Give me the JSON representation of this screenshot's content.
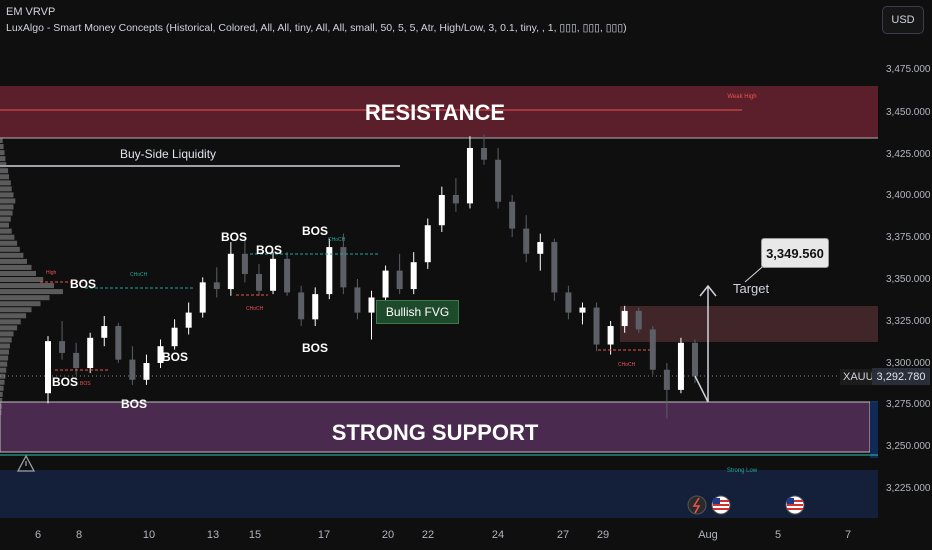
{
  "header": {
    "indicator1": "EM VRVP",
    "indicator2": "LuxAlgo - Smart Money Concepts (Historical, Colored, All, All, tiny, All, All, small, 50, 5, 5, Atr, High/Low, 3, 0.1, tiny, , 1, ▯▯▯, ▯▯▯, ▯▯▯)"
  },
  "currency_button": "USD",
  "symbol": "XAUUSD",
  "current_price": "3,292.780",
  "price_axis": [
    "3,475.000",
    "3,450.000",
    "3,425.000",
    "3,400.000",
    "3,375.000",
    "3,350.000",
    "3,325.000",
    "3,300.000",
    "3,275.000",
    "3,250.000",
    "3,225.000"
  ],
  "date_axis": [
    "6",
    "8",
    "10",
    "13",
    "15",
    "17",
    "20",
    "22",
    "24",
    "27",
    "29",
    "Aug",
    "5",
    "7"
  ],
  "zones": {
    "resistance": "RESISTANCE",
    "support": "STRONG SUPPORT",
    "weak_high": "Weak High",
    "strong_low": "Strong Low",
    "buy_side_liquidity": "Buy-Side Liquidity",
    "bullish_fvg": "Bullish FVG"
  },
  "target": {
    "label": "Target",
    "price": "3,349.560"
  },
  "structure_labels": [
    "BOS",
    "BOS",
    "BOS",
    "BOS",
    "BOS",
    "BOS",
    "BOS",
    "BOS",
    "BOS"
  ],
  "choch_label": "CHoCH",
  "small_bos": "BOS",
  "high_label": "High",
  "colors": {
    "background": "#0f0f0f",
    "resistance_zone": "#5a1f2a",
    "support_zone": "#4a2a4e",
    "bull_candle": "#ffffff",
    "bear_candle": "#5c5f66",
    "choch_teal": "#26a69a",
    "bos_red": "#ef5350",
    "lower_band": "#14203a"
  },
  "icons": [
    "flash-event-icon",
    "us-flag-icon",
    "us-flag-icon"
  ],
  "chart_data": {
    "type": "candlestick",
    "symbol": "XAUUSD",
    "ylim": [
      3215,
      3485
    ],
    "x_ticks": [
      "6",
      "8",
      "10",
      "13",
      "15",
      "17",
      "20",
      "22",
      "24",
      "27",
      "29",
      "Aug",
      "5",
      "7"
    ],
    "candles": [
      [
        3282,
        3316,
        3276,
        3313
      ],
      [
        3313,
        3325,
        3302,
        3306
      ],
      [
        3306,
        3312,
        3293,
        3297
      ],
      [
        3297,
        3318,
        3294,
        3315
      ],
      [
        3315,
        3328,
        3310,
        3322
      ],
      [
        3322,
        3324,
        3300,
        3302
      ],
      [
        3302,
        3310,
        3287,
        3290
      ],
      [
        3290,
        3305,
        3287,
        3300
      ],
      [
        3300,
        3314,
        3297,
        3310
      ],
      [
        3310,
        3326,
        3308,
        3321
      ],
      [
        3321,
        3336,
        3317,
        3330
      ],
      [
        3330,
        3351,
        3327,
        3348
      ],
      [
        3348,
        3357,
        3339,
        3344
      ],
      [
        3344,
        3372,
        3340,
        3365
      ],
      [
        3365,
        3375,
        3348,
        3353
      ],
      [
        3353,
        3359,
        3340,
        3343
      ],
      [
        3343,
        3366,
        3341,
        3362
      ],
      [
        3362,
        3366,
        3340,
        3342
      ],
      [
        3342,
        3346,
        3322,
        3326
      ],
      [
        3326,
        3345,
        3322,
        3341
      ],
      [
        3341,
        3374,
        3338,
        3369
      ],
      [
        3369,
        3377,
        3341,
        3345
      ],
      [
        3345,
        3350,
        3326,
        3330
      ],
      [
        3330,
        3343,
        3314,
        3339
      ],
      [
        3339,
        3358,
        3334,
        3355
      ],
      [
        3355,
        3365,
        3341,
        3344
      ],
      [
        3344,
        3366,
        3341,
        3360
      ],
      [
        3360,
        3386,
        3356,
        3382
      ],
      [
        3382,
        3405,
        3378,
        3400
      ],
      [
        3400,
        3410,
        3390,
        3395
      ],
      [
        3395,
        3435,
        3392,
        3428
      ],
      [
        3428,
        3436,
        3418,
        3421
      ],
      [
        3421,
        3428,
        3392,
        3396
      ],
      [
        3396,
        3400,
        3375,
        3380
      ],
      [
        3380,
        3388,
        3360,
        3365
      ],
      [
        3365,
        3377,
        3355,
        3372
      ],
      [
        3372,
        3374,
        3337,
        3342
      ],
      [
        3342,
        3346,
        3326,
        3330
      ],
      [
        3330,
        3336,
        3323,
        3333
      ],
      [
        3333,
        3336,
        3307,
        3311
      ],
      [
        3311,
        3325,
        3305,
        3322
      ],
      [
        3322,
        3334,
        3318,
        3331
      ],
      [
        3331,
        3333,
        3318,
        3320
      ],
      [
        3320,
        3322,
        3293,
        3296
      ],
      [
        3296,
        3300,
        3267,
        3284
      ],
      [
        3284,
        3315,
        3282,
        3312
      ],
      [
        3312,
        3314,
        3288,
        3292
      ]
    ],
    "levels": {
      "resistance_zone": [
        3434,
        3464
      ],
      "strong_support_zone": [
        3244,
        3276
      ],
      "buy_side_liquidity": 3417,
      "weak_high": 3450,
      "current_price": 3292.78,
      "target": 3349.56
    }
  }
}
